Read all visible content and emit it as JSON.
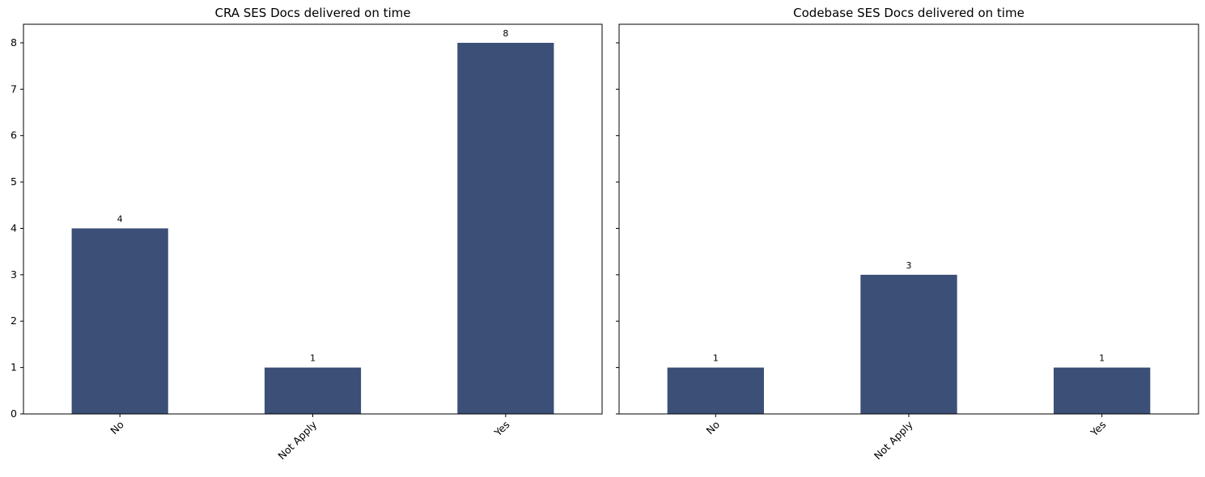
{
  "figure": {
    "bar_color": "#3b4f77"
  },
  "chart_data": [
    {
      "type": "bar",
      "title": "CRA SES Docs delivered on time",
      "categories": [
        "No",
        "Not Apply",
        "Yes"
      ],
      "values": [
        4,
        1,
        8
      ],
      "ylim": [
        0,
        8.4
      ],
      "yticks": [
        0,
        1,
        2,
        3,
        4,
        5,
        6,
        7,
        8
      ],
      "show_ytick_labels": true,
      "xtick_rotation": -45,
      "xlabel": "",
      "ylabel": "",
      "grid": false
    },
    {
      "type": "bar",
      "title": "Codebase SES Docs delivered on time",
      "categories": [
        "No",
        "Not Apply",
        "Yes"
      ],
      "values": [
        1,
        3,
        1
      ],
      "ylim": [
        0,
        8.4
      ],
      "yticks": [
        0,
        1,
        2,
        3,
        4,
        5,
        6,
        7,
        8
      ],
      "show_ytick_labels": false,
      "xtick_rotation": -45,
      "xlabel": "",
      "ylabel": "",
      "grid": false
    }
  ]
}
